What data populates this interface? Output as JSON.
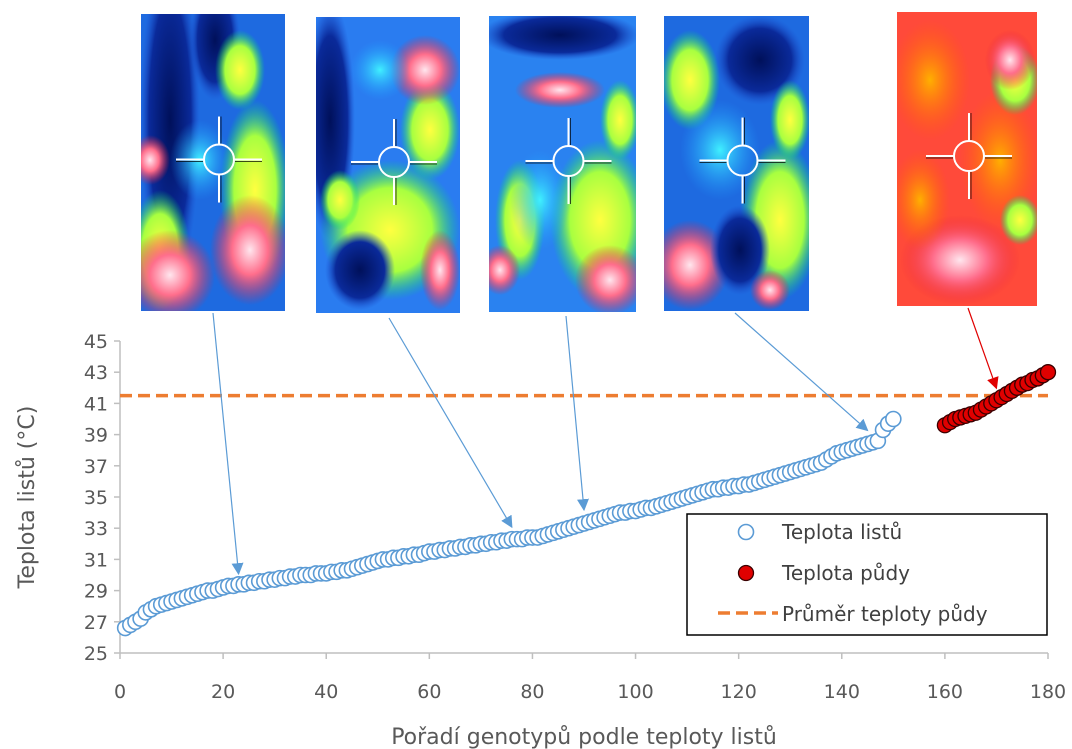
{
  "chart_data": {
    "type": "scatter",
    "xlabel": "Pořadí genotypů podle teploty listů",
    "ylabel": "Teplota listů (°C)",
    "xlim": [
      0,
      180
    ],
    "ylim": [
      25,
      45
    ],
    "x_ticks": [
      0,
      20,
      40,
      60,
      80,
      100,
      120,
      140,
      160,
      180
    ],
    "y_ticks": [
      25,
      27,
      29,
      31,
      33,
      35,
      37,
      39,
      41,
      43,
      45
    ],
    "grid": false,
    "legend_position": "bottom-right",
    "series": [
      {
        "name": "Teplota listů",
        "marker": "open-circle",
        "color": "#5B9BD5",
        "x_start": 1,
        "values": [
          26.6,
          26.8,
          27.0,
          27.2,
          27.6,
          27.8,
          28.0,
          28.1,
          28.2,
          28.3,
          28.4,
          28.5,
          28.6,
          28.7,
          28.8,
          28.9,
          29.0,
          29.0,
          29.1,
          29.2,
          29.3,
          29.3,
          29.4,
          29.4,
          29.5,
          29.5,
          29.6,
          29.6,
          29.7,
          29.7,
          29.8,
          29.8,
          29.9,
          29.9,
          30.0,
          30.0,
          30.0,
          30.1,
          30.1,
          30.1,
          30.2,
          30.2,
          30.3,
          30.3,
          30.4,
          30.5,
          30.6,
          30.7,
          30.8,
          30.9,
          31.0,
          31.0,
          31.1,
          31.1,
          31.2,
          31.2,
          31.3,
          31.3,
          31.4,
          31.5,
          31.5,
          31.6,
          31.6,
          31.7,
          31.7,
          31.8,
          31.8,
          31.9,
          31.9,
          32.0,
          32.0,
          32.1,
          32.1,
          32.2,
          32.2,
          32.3,
          32.3,
          32.3,
          32.4,
          32.4,
          32.4,
          32.5,
          32.6,
          32.7,
          32.8,
          32.9,
          33.0,
          33.1,
          33.2,
          33.3,
          33.4,
          33.5,
          33.6,
          33.7,
          33.8,
          33.9,
          34.0,
          34.0,
          34.1,
          34.1,
          34.2,
          34.3,
          34.3,
          34.4,
          34.5,
          34.6,
          34.7,
          34.8,
          34.9,
          35.0,
          35.1,
          35.2,
          35.3,
          35.4,
          35.5,
          35.5,
          35.6,
          35.6,
          35.7,
          35.7,
          35.8,
          35.8,
          35.9,
          36.0,
          36.1,
          36.2,
          36.3,
          36.4,
          36.5,
          36.6,
          36.7,
          36.8,
          36.9,
          37.0,
          37.1,
          37.2,
          37.4,
          37.6,
          37.8,
          37.9,
          38.0,
          38.1,
          38.2,
          38.3,
          38.4,
          38.5,
          38.6,
          39.3,
          39.7,
          40.0
        ]
      },
      {
        "name": "Teplota půdy",
        "marker": "filled-circle",
        "color": "#E00000",
        "x_start": 160,
        "values": [
          39.6,
          39.8,
          40.0,
          40.1,
          40.2,
          40.3,
          40.4,
          40.6,
          40.8,
          41.0,
          41.2,
          41.4,
          41.6,
          41.8,
          42.0,
          42.2,
          42.3,
          42.5,
          42.6,
          42.8,
          43.0
        ]
      }
    ],
    "reference_line": {
      "name": "Průměr teploty půdy",
      "value": 41.5,
      "style": "dashed",
      "color": "#ED7D31"
    },
    "thermal_images": [
      {
        "name": "thermal-image-1",
        "points_to_x": 23,
        "points_to_y": 29.3,
        "arrow_color": "#5B9BD5"
      },
      {
        "name": "thermal-image-2",
        "points_to_x": 76,
        "points_to_y": 32.3,
        "arrow_color": "#5B9BD5"
      },
      {
        "name": "thermal-image-3",
        "points_to_x": 90,
        "points_to_y": 33.4,
        "arrow_color": "#5B9BD5"
      },
      {
        "name": "thermal-image-4",
        "points_to_x": 145,
        "points_to_y": 38.5,
        "arrow_color": "#5B9BD5"
      },
      {
        "name": "thermal-image-5",
        "points_to_x": 170,
        "points_to_y": 41.2,
        "arrow_color": "#E00000"
      }
    ]
  }
}
